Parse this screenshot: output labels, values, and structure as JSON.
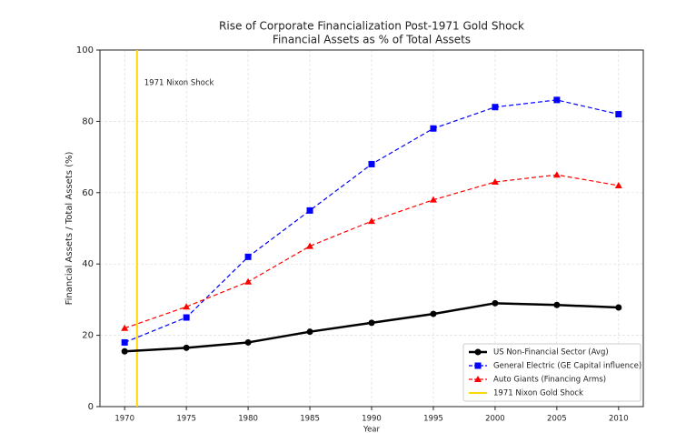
{
  "chart_data": {
    "type": "line",
    "title": "Rise of Corporate Financialization Post-1971 Gold Shock",
    "subtitle": "Financial Assets as % of Total Assets",
    "x_label": "Year",
    "y_label": "Financial Assets / Total Assets (%)",
    "x": [
      1970,
      1975,
      1980,
      1985,
      1990,
      1995,
      2000,
      2005,
      2010
    ],
    "series": [
      {
        "name": "US Non-Financial Sector (Avg)",
        "color": "#000000",
        "marker": "circle",
        "linestyle": "solid",
        "values": [
          15.5,
          16.5,
          18,
          21,
          23.5,
          26,
          29,
          28.5,
          27.8
        ]
      },
      {
        "name": "General Electric (GE Capital influence)",
        "color": "#0000ff",
        "marker": "square",
        "linestyle": "dashed",
        "values": [
          18,
          25,
          42,
          55,
          68,
          78,
          84,
          86,
          82
        ]
      },
      {
        "name": "Auto Giants (Financing Arms)",
        "color": "#ff0000",
        "marker": "triangle",
        "linestyle": "dashed",
        "values": [
          22,
          28,
          35,
          45,
          52,
          58,
          63,
          65,
          62
        ]
      }
    ],
    "vline": {
      "x": 1971,
      "label": "1971 Nixon Gold Shock",
      "color": "#ffd700"
    },
    "annotation": "1971 Nixon Shock",
    "xlim": [
      1968,
      2012
    ],
    "ylim": [
      0,
      100
    ],
    "xticks": [
      1970,
      1975,
      1980,
      1985,
      1990,
      1995,
      2000,
      2005,
      2010
    ],
    "yticks": [
      0,
      20,
      40,
      60,
      80,
      100
    ],
    "grid": true,
    "legend": "lower right"
  }
}
